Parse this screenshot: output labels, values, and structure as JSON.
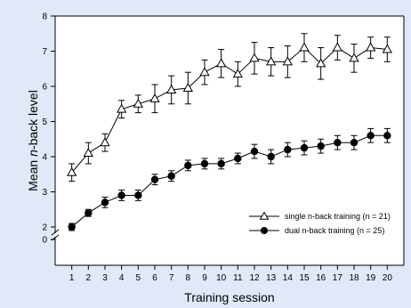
{
  "chart_data": {
    "type": "line",
    "xlabel": "Training session",
    "ylabel": {
      "prefix": "Mean ",
      "italic": "n",
      "suffix": "-back level"
    },
    "x": [
      1,
      2,
      3,
      4,
      5,
      6,
      7,
      8,
      9,
      10,
      11,
      12,
      13,
      14,
      15,
      16,
      17,
      18,
      19,
      20
    ],
    "xlim": [
      0,
      21
    ],
    "ylim": [
      1.5,
      8
    ],
    "y_ticks": [
      0,
      2,
      3,
      4,
      5,
      6,
      7,
      8
    ],
    "axis_break": true,
    "legend_position": "bottom-right",
    "series": [
      {
        "name": "single n-back training (n = 21)",
        "marker": "open-triangle",
        "color": "#000000",
        "values": [
          3.55,
          4.1,
          4.4,
          5.35,
          5.5,
          5.65,
          5.9,
          5.95,
          6.4,
          6.65,
          6.35,
          6.8,
          6.7,
          6.7,
          7.1,
          6.65,
          7.1,
          6.8,
          7.1,
          7.05
        ],
        "errors": [
          0.25,
          0.3,
          0.25,
          0.25,
          0.25,
          0.4,
          0.4,
          0.45,
          0.35,
          0.4,
          0.35,
          0.45,
          0.4,
          0.45,
          0.4,
          0.45,
          0.35,
          0.4,
          0.3,
          0.35
        ]
      },
      {
        "name": "dual n-back training (n = 25)",
        "marker": "filled-circle",
        "color": "#000000",
        "values": [
          2.0,
          2.4,
          2.7,
          2.9,
          2.9,
          3.35,
          3.45,
          3.75,
          3.8,
          3.8,
          3.95,
          4.15,
          4.0,
          4.2,
          4.25,
          4.3,
          4.4,
          4.4,
          4.6,
          4.6
        ],
        "errors": [
          0.1,
          0.1,
          0.15,
          0.15,
          0.15,
          0.15,
          0.15,
          0.15,
          0.15,
          0.15,
          0.15,
          0.2,
          0.2,
          0.2,
          0.2,
          0.2,
          0.2,
          0.2,
          0.2,
          0.2
        ]
      }
    ]
  }
}
